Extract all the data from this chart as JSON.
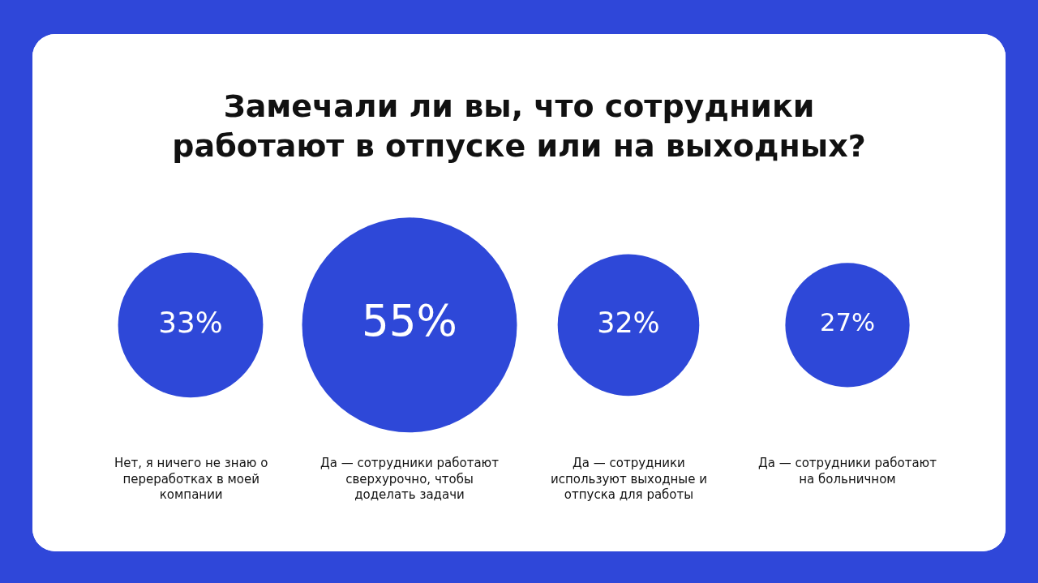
{
  "chart_data": {
    "type": "other",
    "title": "Замечали ли вы, что сотрудники работают в отпуске или на выходных?",
    "categories": [
      "Нет, я ничего не знаю о переработках в моей компании",
      "Да — сотрудники работают сверхурочно, чтобы доделать задачи",
      "Да — сотрудники используют выходные и отпуска для работы",
      "Да — сотрудники работают на больничном"
    ],
    "values": [
      33,
      55,
      32,
      27
    ],
    "value_labels": [
      "33%",
      "55%",
      "32%",
      "27%"
    ],
    "color": "#2e48d8"
  }
}
